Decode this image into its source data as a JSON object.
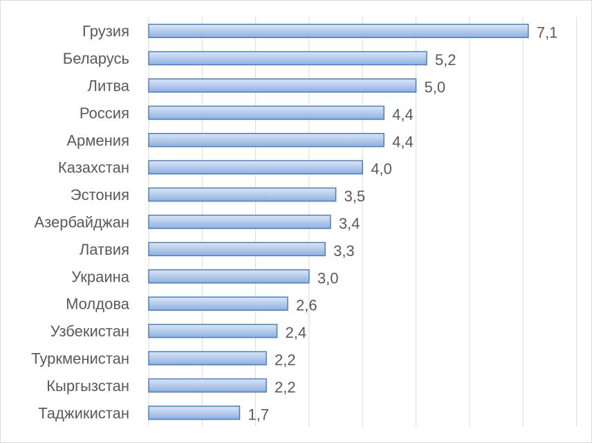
{
  "chart_data": {
    "type": "bar",
    "orientation": "horizontal",
    "categories": [
      "Грузия",
      "Беларусь",
      "Литва",
      "Россия",
      "Армения",
      "Казахстан",
      "Эстония",
      "Азербайджан",
      "Латвия",
      "Украина",
      "Молдова",
      "Узбекистан",
      "Туркменистан",
      "Кыргызстан",
      "Таджикистан"
    ],
    "values": [
      7.1,
      5.2,
      5.0,
      4.4,
      4.4,
      4.0,
      3.5,
      3.4,
      3.3,
      3.0,
      2.6,
      2.4,
      2.2,
      2.2,
      1.7
    ],
    "value_labels": [
      "7,1",
      "5,2",
      "5,0",
      "4,4",
      "4,4",
      "4,0",
      "3,5",
      "3,4",
      "3,3",
      "3,0",
      "2,6",
      "2,4",
      "2,2",
      "2,2",
      "1,7"
    ],
    "title": "",
    "xlabel": "",
    "ylabel": "",
    "xlim": [
      0,
      8
    ],
    "grid": "vertical",
    "legend": "none",
    "colors": {
      "bar_fill_top": "#dbe6f7",
      "bar_fill_bottom": "#8eb0e0",
      "bar_stroke": "#4a7ebb",
      "grid": "#d9d9d9",
      "text": "#595959"
    }
  }
}
